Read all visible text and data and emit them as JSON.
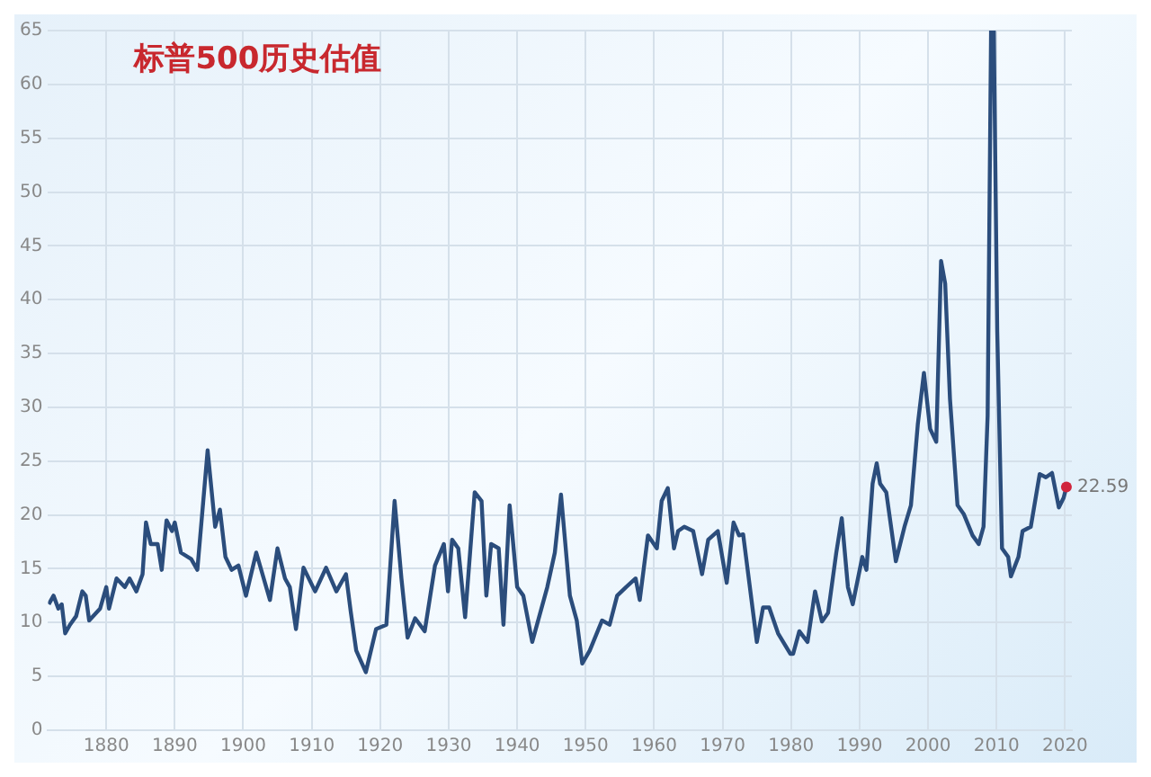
{
  "chart_data": {
    "type": "line",
    "title": "标普500历史估值",
    "x": [
      1871.6,
      1872.3,
      1873,
      1873.5,
      1874,
      1874.7,
      1875.6,
      1876.5,
      1877,
      1877.5,
      1879.1,
      1880,
      1880.4,
      1881.5,
      1882.7,
      1883.4,
      1884.4,
      1885.3,
      1885.8,
      1886.5,
      1887.5,
      1888.1,
      1888.8,
      1889.6,
      1890,
      1890.9,
      1892.4,
      1893.3,
      1894.8,
      1895.9,
      1896.6,
      1897.4,
      1898.3,
      1899.3,
      1900.4,
      1901.9,
      1903.9,
      1905,
      1906.1,
      1906.8,
      1907.7,
      1908.8,
      1910.5,
      1912.1,
      1913.6,
      1915,
      1915.7,
      1916.5,
      1917.9,
      1919.4,
      1920.9,
      1922.1,
      1923.1,
      1924,
      1925.1,
      1926.5,
      1928,
      1929.3,
      1929.9,
      1930.5,
      1931.4,
      1932.4,
      1933.8,
      1934.8,
      1935.5,
      1936.2,
      1937.3,
      1938,
      1938.9,
      1940,
      1940.9,
      1942.2,
      1944.4,
      1945.5,
      1946.4,
      1947.7,
      1948.7,
      1949.5,
      1950.6,
      1952.4,
      1953.5,
      1954.6,
      1955.9,
      1957.3,
      1957.9,
      1959.1,
      1960.4,
      1961.1,
      1962,
      1962.9,
      1963.5,
      1964.4,
      1965.7,
      1967,
      1967.9,
      1969.3,
      1970.6,
      1971.6,
      1972.4,
      1973,
      1975,
      1975.9,
      1976.8,
      1978.1,
      1979.9,
      1980.3,
      1981.2,
      1982.4,
      1983.5,
      1984.5,
      1985.4,
      1986.6,
      1987.4,
      1988.3,
      1989,
      1990.4,
      1991,
      1991.9,
      1992.5,
      1993,
      1993.9,
      1995.3,
      1996.6,
      1997.5,
      1998.5,
      1999.4,
      2000.3,
      2001.2,
      2001.9,
      2002.5,
      2003.2,
      2004.3,
      2005.2,
      2006.5,
      2007.4,
      2008.1,
      2008.7,
      2009.2,
      2009.6,
      2010.1,
      2010.8,
      2011.7,
      2012.1,
      2013.2,
      2013.8,
      2015,
      2016.3,
      2017.2,
      2018.1,
      2019.1,
      2019.8,
      2020.2
    ],
    "series": [
      {
        "color": "#2b4d7c",
        "values": [
          11.7,
          12.5,
          11.3,
          11.7,
          9.0,
          9.8,
          10.6,
          12.9,
          12.5,
          10.2,
          11.3,
          13.3,
          11.3,
          14.1,
          13.3,
          14.1,
          12.9,
          14.5,
          19.3,
          17.3,
          17.3,
          14.9,
          19.5,
          18.5,
          19.3,
          16.5,
          15.9,
          14.9,
          26.0,
          18.9,
          20.5,
          16.1,
          14.9,
          15.3,
          12.5,
          16.5,
          12.1,
          16.9,
          14.1,
          13.3,
          9.4,
          15.1,
          12.9,
          15.1,
          12.9,
          14.5,
          11.0,
          7.4,
          5.4,
          9.4,
          9.8,
          21.3,
          14.1,
          8.6,
          10.4,
          9.2,
          15.3,
          17.3,
          12.9,
          17.7,
          16.9,
          10.5,
          22.1,
          21.3,
          12.5,
          17.3,
          16.9,
          9.8,
          20.9,
          13.3,
          12.5,
          8.2,
          13.3,
          16.5,
          21.9,
          12.5,
          10.2,
          6.2,
          7.4,
          10.2,
          9.8,
          12.5,
          13.3,
          14.1,
          12.1,
          18.1,
          16.9,
          21.3,
          22.5,
          16.9,
          18.5,
          18.9,
          18.5,
          14.5,
          17.7,
          18.5,
          13.7,
          19.3,
          18.1,
          18.2,
          8.2,
          11.4,
          11.4,
          9.0,
          7.1,
          7.1,
          9.2,
          8.2,
          12.9,
          10.1,
          10.9,
          16.5,
          19.7,
          13.3,
          11.7,
          16.1,
          14.9,
          22.9,
          24.8,
          22.9,
          22.1,
          15.7,
          19.0,
          20.9,
          28.4,
          33.2,
          28.0,
          26.8,
          43.6,
          41.5,
          30.8,
          20.9,
          20.1,
          18.1,
          17.3,
          18.9,
          29.2,
          65,
          65,
          37.1,
          16.9,
          16.1,
          14.3,
          16.1,
          18.5,
          18.9,
          23.8,
          23.5,
          23.9,
          20.7,
          21.6,
          22.59
        ]
      }
    ],
    "annotations": [
      {
        "text": "22.59",
        "x": 2020.2,
        "y": 22.59
      }
    ],
    "xlim": [
      1871.5,
      2021
    ],
    "xticks": [
      1880,
      1890,
      1900,
      1910,
      1920,
      1930,
      1940,
      1950,
      1960,
      1970,
      1980,
      1990,
      2000,
      2010,
      2020
    ],
    "ylim": [
      0,
      65
    ],
    "yticks": [
      0,
      5,
      10,
      15,
      20,
      25,
      30,
      35,
      40,
      45,
      50,
      55,
      60,
      65
    ],
    "grid": true,
    "marker": "none",
    "line_style": "solid"
  }
}
